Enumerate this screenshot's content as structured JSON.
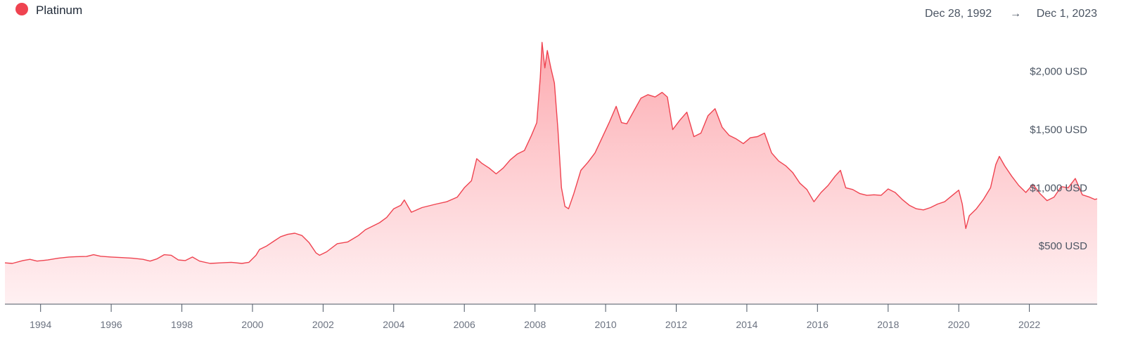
{
  "legend": {
    "label": "Platinum",
    "color": "#ef4350"
  },
  "range": {
    "start": "Dec 28, 1992",
    "arrow": "→",
    "end": "Dec 1, 2023"
  },
  "chart_data": {
    "type": "area",
    "title": "",
    "xlabel": "",
    "ylabel": "",
    "x_range": [
      1992.99,
      2023.92
    ],
    "ylim": [
      0,
      2300
    ],
    "grid": false,
    "legend_position": "top-left",
    "y_ticks": [
      {
        "value": 500,
        "label": "$500 USD"
      },
      {
        "value": 1000,
        "label": "$1,000 USD"
      },
      {
        "value": 1500,
        "label": "$1,500 USD"
      },
      {
        "value": 2000,
        "label": "$2,000 USD"
      }
    ],
    "x_ticks": [
      {
        "value": 1994,
        "label": "1994"
      },
      {
        "value": 1996,
        "label": "1996"
      },
      {
        "value": 1998,
        "label": "1998"
      },
      {
        "value": 2000,
        "label": "2000"
      },
      {
        "value": 2002,
        "label": "2002"
      },
      {
        "value": 2004,
        "label": "2004"
      },
      {
        "value": 2006,
        "label": "2006"
      },
      {
        "value": 2008,
        "label": "2008"
      },
      {
        "value": 2010,
        "label": "2010"
      },
      {
        "value": 2012,
        "label": "2012"
      },
      {
        "value": 2014,
        "label": "2014"
      },
      {
        "value": 2016,
        "label": "2016"
      },
      {
        "value": 2018,
        "label": "2018"
      },
      {
        "value": 2020,
        "label": "2020"
      },
      {
        "value": 2022,
        "label": "2022"
      }
    ],
    "series": [
      {
        "name": "Platinum",
        "color": "#ef4350",
        "points": [
          [
            1992.99,
            355
          ],
          [
            1993.2,
            350
          ],
          [
            1993.5,
            375
          ],
          [
            1993.7,
            385
          ],
          [
            1993.9,
            370
          ],
          [
            1994.2,
            380
          ],
          [
            1994.5,
            395
          ],
          [
            1994.8,
            405
          ],
          [
            1995.0,
            408
          ],
          [
            1995.3,
            410
          ],
          [
            1995.5,
            425
          ],
          [
            1995.7,
            412
          ],
          [
            1996.0,
            405
          ],
          [
            1996.3,
            400
          ],
          [
            1996.6,
            395
          ],
          [
            1996.9,
            385
          ],
          [
            1997.1,
            370
          ],
          [
            1997.3,
            390
          ],
          [
            1997.5,
            425
          ],
          [
            1997.7,
            420
          ],
          [
            1997.9,
            380
          ],
          [
            1998.1,
            375
          ],
          [
            1998.3,
            405
          ],
          [
            1998.5,
            370
          ],
          [
            1998.8,
            350
          ],
          [
            1999.1,
            355
          ],
          [
            1999.4,
            360
          ],
          [
            1999.7,
            350
          ],
          [
            1999.9,
            360
          ],
          [
            2000.1,
            420
          ],
          [
            2000.2,
            470
          ],
          [
            2000.4,
            500
          ],
          [
            2000.6,
            540
          ],
          [
            2000.8,
            580
          ],
          [
            2001.0,
            600
          ],
          [
            2001.2,
            610
          ],
          [
            2001.4,
            590
          ],
          [
            2001.6,
            530
          ],
          [
            2001.8,
            440
          ],
          [
            2001.9,
            420
          ],
          [
            2002.1,
            450
          ],
          [
            2002.4,
            520
          ],
          [
            2002.7,
            535
          ],
          [
            2003.0,
            590
          ],
          [
            2003.2,
            640
          ],
          [
            2003.4,
            670
          ],
          [
            2003.6,
            700
          ],
          [
            2003.8,
            745
          ],
          [
            2004.0,
            820
          ],
          [
            2004.2,
            850
          ],
          [
            2004.3,
            895
          ],
          [
            2004.5,
            790
          ],
          [
            2004.8,
            830
          ],
          [
            2005.2,
            860
          ],
          [
            2005.5,
            880
          ],
          [
            2005.8,
            920
          ],
          [
            2006.0,
            1000
          ],
          [
            2006.2,
            1060
          ],
          [
            2006.35,
            1250
          ],
          [
            2006.5,
            1210
          ],
          [
            2006.7,
            1170
          ],
          [
            2006.9,
            1120
          ],
          [
            2007.1,
            1170
          ],
          [
            2007.3,
            1240
          ],
          [
            2007.5,
            1290
          ],
          [
            2007.7,
            1320
          ],
          [
            2007.9,
            1450
          ],
          [
            2008.05,
            1560
          ],
          [
            2008.15,
            1950
          ],
          [
            2008.2,
            2250
          ],
          [
            2008.28,
            2030
          ],
          [
            2008.35,
            2180
          ],
          [
            2008.45,
            2030
          ],
          [
            2008.55,
            1900
          ],
          [
            2008.65,
            1500
          ],
          [
            2008.75,
            1000
          ],
          [
            2008.85,
            840
          ],
          [
            2008.95,
            820
          ],
          [
            2009.1,
            950
          ],
          [
            2009.3,
            1150
          ],
          [
            2009.5,
            1220
          ],
          [
            2009.7,
            1300
          ],
          [
            2009.9,
            1430
          ],
          [
            2010.1,
            1560
          ],
          [
            2010.3,
            1700
          ],
          [
            2010.45,
            1560
          ],
          [
            2010.6,
            1550
          ],
          [
            2010.8,
            1660
          ],
          [
            2011.0,
            1770
          ],
          [
            2011.2,
            1800
          ],
          [
            2011.4,
            1780
          ],
          [
            2011.6,
            1820
          ],
          [
            2011.75,
            1780
          ],
          [
            2011.9,
            1500
          ],
          [
            2012.1,
            1580
          ],
          [
            2012.3,
            1650
          ],
          [
            2012.5,
            1440
          ],
          [
            2012.7,
            1470
          ],
          [
            2012.9,
            1620
          ],
          [
            2013.1,
            1680
          ],
          [
            2013.3,
            1520
          ],
          [
            2013.5,
            1450
          ],
          [
            2013.7,
            1420
          ],
          [
            2013.9,
            1380
          ],
          [
            2014.1,
            1430
          ],
          [
            2014.3,
            1440
          ],
          [
            2014.5,
            1470
          ],
          [
            2014.7,
            1300
          ],
          [
            2014.9,
            1230
          ],
          [
            2015.1,
            1190
          ],
          [
            2015.3,
            1130
          ],
          [
            2015.5,
            1040
          ],
          [
            2015.7,
            985
          ],
          [
            2015.9,
            880
          ],
          [
            2016.1,
            960
          ],
          [
            2016.3,
            1020
          ],
          [
            2016.5,
            1100
          ],
          [
            2016.65,
            1150
          ],
          [
            2016.8,
            1000
          ],
          [
            2017.0,
            985
          ],
          [
            2017.2,
            950
          ],
          [
            2017.4,
            935
          ],
          [
            2017.6,
            940
          ],
          [
            2017.8,
            935
          ],
          [
            2018.0,
            990
          ],
          [
            2018.2,
            960
          ],
          [
            2018.4,
            900
          ],
          [
            2018.6,
            850
          ],
          [
            2018.8,
            820
          ],
          [
            2019.0,
            810
          ],
          [
            2019.2,
            830
          ],
          [
            2019.4,
            860
          ],
          [
            2019.6,
            880
          ],
          [
            2019.8,
            930
          ],
          [
            2020.0,
            980
          ],
          [
            2020.1,
            860
          ],
          [
            2020.2,
            650
          ],
          [
            2020.3,
            760
          ],
          [
            2020.5,
            820
          ],
          [
            2020.7,
            900
          ],
          [
            2020.9,
            1000
          ],
          [
            2021.05,
            1200
          ],
          [
            2021.15,
            1270
          ],
          [
            2021.3,
            1190
          ],
          [
            2021.5,
            1100
          ],
          [
            2021.7,
            1020
          ],
          [
            2021.9,
            960
          ],
          [
            2022.1,
            1030
          ],
          [
            2022.3,
            950
          ],
          [
            2022.5,
            890
          ],
          [
            2022.7,
            920
          ],
          [
            2022.9,
            1010
          ],
          [
            2023.1,
            1000
          ],
          [
            2023.3,
            1080
          ],
          [
            2023.5,
            940
          ],
          [
            2023.7,
            920
          ],
          [
            2023.85,
            900
          ],
          [
            2023.92,
            905
          ]
        ]
      }
    ]
  }
}
